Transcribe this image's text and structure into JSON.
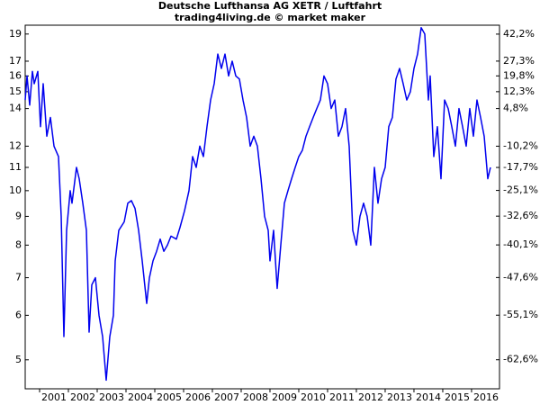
{
  "chart_data": {
    "type": "line",
    "title": "Deutsche Lufthansa AG XETR / Luftfahrt",
    "subtitle": "trading4living.de © market maker",
    "color": "#0000ee",
    "yscale": "log",
    "y2scale": "log-percent-change",
    "grid": false,
    "xlim": [
      2000.5,
      2016.97
    ],
    "xticks": [
      2001,
      2002,
      2003,
      2004,
      2005,
      2006,
      2007,
      2008,
      2009,
      2010,
      2011,
      2012,
      2013,
      2014,
      2015,
      2016
    ],
    "ylim": [
      4.44,
      19.7
    ],
    "yticks": [
      5,
      6,
      7,
      8,
      9,
      10,
      11,
      12,
      14,
      15,
      16,
      17,
      19
    ],
    "y2lim": [
      -66.8,
      47.5
    ],
    "y2ticks": [
      {
        "value": 42.2,
        "label": "42,2%"
      },
      {
        "value": 27.3,
        "label": "27,3%"
      },
      {
        "value": 19.8,
        "label": "19,8%"
      },
      {
        "value": 12.3,
        "label": "12,3%"
      },
      {
        "value": 4.8,
        "label": "4,8%"
      },
      {
        "value": -10.2,
        "label": "-10,2%"
      },
      {
        "value": -17.7,
        "label": "-17,7%"
      },
      {
        "value": -25.1,
        "label": "-25,1%"
      },
      {
        "value": -32.6,
        "label": "-32,6%"
      },
      {
        "value": -40.1,
        "label": "-40,1%"
      },
      {
        "value": -47.6,
        "label": "-47,6%"
      },
      {
        "value": -55.1,
        "label": "-55,1%"
      },
      {
        "value": -62.6,
        "label": "-62,6%"
      }
    ],
    "x": [
      2000.5,
      2000.563,
      2000.656,
      2000.75,
      2000.813,
      2000.938,
      2001.031,
      2001.125,
      2001.25,
      2001.375,
      2001.5,
      2001.656,
      2001.75,
      2001.844,
      2001.938,
      2002.063,
      2002.125,
      2002.281,
      2002.375,
      2002.5,
      2002.625,
      2002.719,
      2002.813,
      2002.938,
      2003.063,
      2003.188,
      2003.313,
      2003.438,
      2003.563,
      2003.625,
      2003.75,
      2003.938,
      2004.063,
      2004.188,
      2004.313,
      2004.438,
      2004.563,
      2004.719,
      2004.813,
      2004.938,
      2005.063,
      2005.188,
      2005.313,
      2005.438,
      2005.563,
      2005.75,
      2005.875,
      2006.031,
      2006.188,
      2006.313,
      2006.438,
      2006.563,
      2006.688,
      2006.813,
      2006.938,
      2007.063,
      2007.188,
      2007.313,
      2007.438,
      2007.563,
      2007.688,
      2007.813,
      2007.938,
      2008.063,
      2008.188,
      2008.313,
      2008.438,
      2008.563,
      2008.688,
      2008.813,
      2008.938,
      2009.0,
      2009.125,
      2009.25,
      2009.375,
      2009.5,
      2009.625,
      2009.75,
      2009.875,
      2010.0,
      2010.125,
      2010.25,
      2010.375,
      2010.5,
      2010.625,
      2010.75,
      2010.875,
      2011.0,
      2011.125,
      2011.25,
      2011.375,
      2011.5,
      2011.625,
      2011.75,
      2011.875,
      2012.0,
      2012.125,
      2012.25,
      2012.375,
      2012.5,
      2012.625,
      2012.75,
      2012.875,
      2013.0,
      2013.125,
      2013.25,
      2013.375,
      2013.5,
      2013.625,
      2013.75,
      2013.875,
      2014.0,
      2014.125,
      2014.25,
      2014.375,
      2014.5,
      2014.563,
      2014.688,
      2014.813,
      2014.938,
      2015.063,
      2015.188,
      2015.313,
      2015.438,
      2015.563,
      2015.688,
      2015.813,
      2015.938,
      2016.063,
      2016.188,
      2016.313,
      2016.438,
      2016.563,
      2016.656
    ],
    "values": [
      14.5,
      16,
      14.2,
      16.3,
      15.5,
      16.3,
      13,
      15.5,
      12.5,
      13.5,
      12,
      11.5,
      9,
      5.5,
      8.5,
      10,
      9.5,
      11,
      10.5,
      9.5,
      8.5,
      5.6,
      6.8,
      7,
      6,
      5.5,
      4.6,
      5.5,
      6,
      7.5,
      8.5,
      8.8,
      9.5,
      9.6,
      9.3,
      8.5,
      7.5,
      6.3,
      7,
      7.5,
      7.8,
      8.2,
      7.8,
      8,
      8.3,
      8.2,
      8.6,
      9.2,
      10,
      11.5,
      11,
      12,
      11.5,
      13,
      14.5,
      15.5,
      17.5,
      16.5,
      17.5,
      16,
      17,
      16,
      15.8,
      14.5,
      13.5,
      12,
      12.5,
      12,
      10.5,
      9,
      8.5,
      7.5,
      8.5,
      6.7,
      8,
      9.5,
      10,
      10.5,
      11,
      11.5,
      11.8,
      12.5,
      13,
      13.5,
      14,
      14.5,
      16,
      15.5,
      14,
      14.5,
      12.5,
      13,
      14,
      12,
      8.5,
      8,
      9,
      9.5,
      9,
      8,
      11,
      9.5,
      10.5,
      11,
      13,
      13.5,
      15.8,
      16.5,
      15.5,
      14.5,
      15,
      16.5,
      17.5,
      19.5,
      19,
      14.5,
      16,
      11.5,
      13,
      10.5,
      14.5,
      14,
      13,
      12,
      14,
      13,
      12,
      14,
      12.5,
      14.5,
      13.5,
      12.5,
      10.5,
      11
    ]
  }
}
